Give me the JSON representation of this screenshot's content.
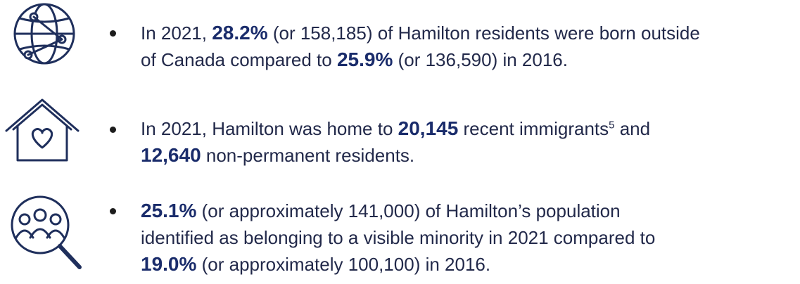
{
  "items": [
    {
      "lines": [
        [
          {
            "text": "In 2021, ",
            "style": "normal"
          },
          {
            "text": "28.2%",
            "style": "bold"
          },
          {
            "text": " (or 158,185) of Hamilton residents were born outside",
            "style": "normal"
          }
        ],
        [
          {
            "text": "of Canada compared to ",
            "style": "normal"
          },
          {
            "text": "25.9%",
            "style": "bold"
          },
          {
            "text": " (or 136,590) in 2016.",
            "style": "normal"
          }
        ]
      ]
    },
    {
      "lines": [
        [
          {
            "text": "In 2021, Hamilton was home to ",
            "style": "normal"
          },
          {
            "text": "20,145",
            "style": "bold"
          },
          {
            "text": " recent immigrants",
            "style": "normal"
          },
          {
            "text": "5",
            "style": "sup"
          },
          {
            "text": " and",
            "style": "normal"
          }
        ],
        [
          {
            "text": "12,640",
            "style": "bold"
          },
          {
            "text": " non-permanent residents.",
            "style": "normal"
          }
        ]
      ]
    },
    {
      "lines": [
        [
          {
            "text": "25.1%",
            "style": "bold"
          },
          {
            "text": " (or approximately 141,000) of Hamilton’s population",
            "style": "normal"
          }
        ],
        [
          {
            "text": "identified as belonging to a visible minority in 2021 compared to",
            "style": "normal"
          }
        ],
        [
          {
            "text": "19.0%",
            "style": "bold"
          },
          {
            "text": " (or approximately 100,100) in 2016.",
            "style": "normal"
          }
        ]
      ]
    }
  ]
}
